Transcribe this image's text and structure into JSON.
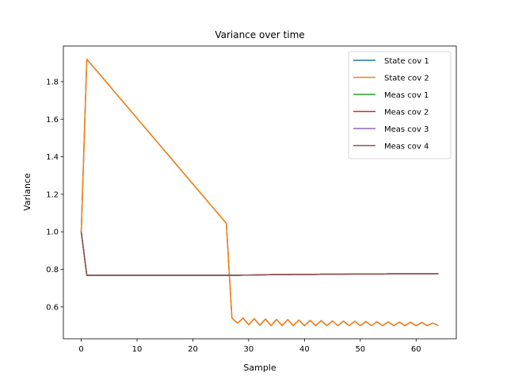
{
  "chart_data": {
    "type": "line",
    "title": "Variance over time",
    "xlabel": "Sample",
    "ylabel": "Variance",
    "xlim": [
      -3.2,
      67.2
    ],
    "ylim": [
      0.43,
      1.99
    ],
    "xticks": [
      0,
      10,
      20,
      30,
      40,
      50,
      60
    ],
    "yticks": [
      0.6,
      0.8,
      1.0,
      1.2,
      1.4,
      1.6,
      1.8
    ],
    "grid": false,
    "legend_position": "top-right",
    "series": [
      {
        "name": "State cov 1",
        "color": "#1f77b4",
        "kind": "state"
      },
      {
        "name": "State cov 2",
        "color": "#ff7f0e",
        "kind": "state"
      },
      {
        "name": "Meas cov 1",
        "color": "#2ca02c",
        "kind": "meas"
      },
      {
        "name": "Meas cov 2",
        "color": "#d62728",
        "kind": "meas"
      },
      {
        "name": "Meas cov 3",
        "color": "#9467bd",
        "kind": "meas"
      },
      {
        "name": "Meas cov 4",
        "color": "#8c564b",
        "kind": "meas"
      }
    ],
    "state_values": [
      1.0,
      1.92,
      1.885,
      1.85,
      1.815,
      1.78,
      1.745,
      1.71,
      1.675,
      1.64,
      1.605,
      1.57,
      1.535,
      1.5,
      1.465,
      1.43,
      1.395,
      1.36,
      1.325,
      1.29,
      1.255,
      1.22,
      1.185,
      1.15,
      1.115,
      1.08,
      1.045,
      0.54,
      0.513,
      0.54,
      0.505,
      0.537,
      0.502,
      0.535,
      0.5,
      0.533,
      0.5,
      0.532,
      0.5,
      0.53,
      0.5,
      0.528,
      0.5,
      0.527,
      0.5,
      0.525,
      0.5,
      0.524,
      0.5,
      0.523,
      0.5,
      0.522,
      0.5,
      0.521,
      0.5,
      0.52,
      0.5,
      0.519,
      0.5,
      0.518,
      0.5,
      0.517,
      0.5,
      0.514,
      0.5
    ],
    "meas_values": [
      1.0,
      0.768,
      0.768,
      0.768,
      0.768,
      0.768,
      0.768,
      0.768,
      0.768,
      0.768,
      0.768,
      0.768,
      0.768,
      0.768,
      0.768,
      0.768,
      0.768,
      0.768,
      0.768,
      0.768,
      0.768,
      0.768,
      0.768,
      0.768,
      0.768,
      0.768,
      0.768,
      0.768,
      0.768,
      0.769,
      0.769,
      0.77,
      0.771,
      0.771,
      0.772,
      0.772,
      0.772,
      0.772,
      0.773,
      0.773,
      0.773,
      0.773,
      0.773,
      0.774,
      0.774,
      0.774,
      0.774,
      0.774,
      0.775,
      0.775,
      0.775,
      0.775,
      0.775,
      0.775,
      0.775,
      0.776,
      0.776,
      0.776,
      0.776,
      0.776,
      0.776,
      0.776,
      0.776,
      0.776,
      0.776
    ]
  }
}
